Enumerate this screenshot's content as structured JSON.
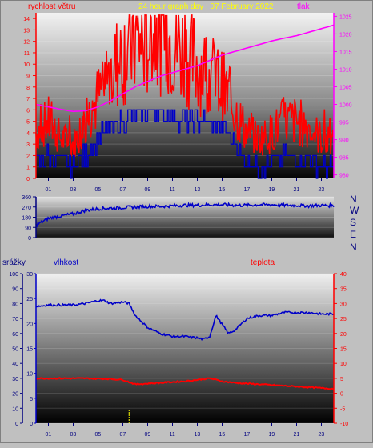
{
  "header": {
    "left_label": "rychlost větru",
    "title": "24 hour graph day : 07 February 2022",
    "right_label": "tlak"
  },
  "direction_labels": [
    "N",
    "W",
    "S",
    "E",
    "N"
  ],
  "bottom_header": {
    "left_label": "srážky",
    "mid_label": "vlhkost",
    "right_label": "teplota"
  },
  "x_ticks": [
    "01",
    "03",
    "05",
    "07",
    "09",
    "11",
    "13",
    "15",
    "17",
    "19",
    "21",
    "23"
  ],
  "colors": {
    "wind_gust": "#ff0000",
    "wind_avg": "#0000c8",
    "pressure": "#ff00ff",
    "direction": "#0000c8",
    "humidity": "#0000c8",
    "temperature": "#ff0000",
    "rain_markers": "#ffff00"
  },
  "chart_data": [
    {
      "type": "line",
      "series": [
        {
          "name": "rychlost větru",
          "x": [
            0,
            1,
            2,
            3,
            4,
            5,
            6,
            7,
            8,
            9,
            10,
            11,
            12,
            13,
            14,
            15,
            16,
            17,
            18,
            19,
            20,
            21,
            22,
            23,
            24
          ],
          "values": [
            4,
            5,
            3.5,
            3,
            5,
            7,
            9,
            11,
            12,
            12,
            13,
            12,
            11,
            10,
            9,
            8,
            6,
            4,
            3.5,
            4,
            5,
            5,
            4.5,
            3.5,
            3
          ]
        },
        {
          "name": "",
          "x": [
            0,
            1,
            2,
            3,
            4,
            5,
            6,
            7,
            8,
            9,
            10,
            11,
            12,
            13,
            14,
            15,
            16,
            17,
            18,
            19,
            20,
            21,
            22,
            23,
            24
          ],
          "values": [
            1.5,
            2,
            1.5,
            1,
            2,
            3.5,
            4.5,
            5,
            5.5,
            6,
            5.5,
            5.5,
            5,
            5,
            5,
            4.5,
            3,
            1.5,
            1,
            1.5,
            2,
            2,
            1.5,
            1,
            1
          ]
        },
        {
          "name": "tlak",
          "x": [
            0,
            1,
            2,
            3,
            4,
            5,
            6,
            7,
            8,
            9,
            10,
            11,
            12,
            13,
            14,
            15,
            16,
            17,
            18,
            19,
            20,
            21,
            22,
            23,
            24
          ],
          "values": [
            1000,
            999.3,
            998.6,
            998,
            998.2,
            999.3,
            1001,
            1003,
            1005,
            1006.5,
            1008,
            1009,
            1010,
            1011,
            1012.5,
            1014,
            1015,
            1016,
            1017,
            1018,
            1018.8,
            1019.5,
            1020.5,
            1021.5,
            1022.5
          ]
        }
      ],
      "y_left": {
        "label": "rychlost větru",
        "range": [
          0,
          14.5
        ],
        "ticks": [
          0,
          1,
          2,
          3,
          4,
          5,
          6,
          7,
          8,
          9,
          10,
          11,
          12,
          13,
          14
        ]
      },
      "y_right": {
        "label": "tlak",
        "range": [
          979,
          1026
        ],
        "ticks": [
          980,
          985,
          990,
          995,
          1000,
          1005,
          1010,
          1015,
          1020,
          1025
        ]
      },
      "x_range": [
        0,
        24
      ]
    },
    {
      "type": "line",
      "series": [
        {
          "name": "",
          "x": [
            0,
            0.5,
            1,
            2,
            3,
            4,
            5,
            6,
            7,
            8,
            9,
            10,
            11,
            12,
            13,
            14,
            15,
            16,
            17,
            18,
            19,
            20,
            21,
            22,
            23,
            24
          ],
          "values": [
            110,
            140,
            170,
            190,
            210,
            240,
            255,
            260,
            265,
            270,
            275,
            275,
            280,
            285,
            285,
            290,
            290,
            285,
            285,
            290,
            290,
            285,
            285,
            280,
            285,
            280
          ]
        }
      ],
      "y_left": {
        "range": [
          0,
          360
        ],
        "ticks": [
          0,
          90,
          180,
          270,
          360
        ]
      },
      "x_range": [
        0,
        24
      ]
    },
    {
      "type": "line",
      "series": [
        {
          "name": "vlhkost",
          "x": [
            0,
            1,
            2,
            3,
            4,
            5,
            5.5,
            6,
            7,
            7.5,
            8,
            9,
            10,
            11,
            12,
            13,
            13.5,
            14,
            14.5,
            15,
            15.5,
            16,
            17,
            18,
            19,
            20,
            21,
            22,
            23,
            24
          ],
          "values": [
            78,
            79,
            79,
            79,
            80,
            82,
            82,
            80,
            81,
            80,
            72,
            64,
            60,
            58,
            58,
            57,
            56,
            58,
            72,
            66,
            60,
            62,
            70,
            72,
            72,
            74,
            74,
            74,
            73,
            73
          ]
        },
        {
          "name": "teplota",
          "x": [
            0,
            2,
            4,
            6,
            7,
            8,
            10,
            12,
            13,
            14,
            15,
            16,
            18,
            20,
            22,
            24
          ],
          "values": [
            5,
            5,
            5,
            4.8,
            4.5,
            3,
            3.5,
            4,
            4.5,
            5,
            4,
            3.5,
            3,
            2.5,
            2,
            1.5
          ]
        },
        {
          "name": "srážky",
          "x": [
            7.5,
            17
          ],
          "values": [
            3,
            3
          ]
        }
      ],
      "y_left": {
        "label": "srážky",
        "range": [
          0,
          100
        ],
        "ticks": [
          0,
          10,
          20,
          30,
          40,
          50,
          60,
          70,
          80,
          90,
          100
        ]
      },
      "y_mid": {
        "label": "vlhkost",
        "range": [
          0,
          30
        ],
        "ticks": [
          0,
          5,
          10,
          15,
          20,
          25,
          30
        ]
      },
      "y_right": {
        "label": "teplota",
        "range": [
          -10,
          40
        ],
        "ticks": [
          -10,
          -5,
          0,
          5,
          10,
          15,
          20,
          25,
          30,
          35,
          40
        ]
      },
      "x_range": [
        0,
        24
      ]
    }
  ]
}
